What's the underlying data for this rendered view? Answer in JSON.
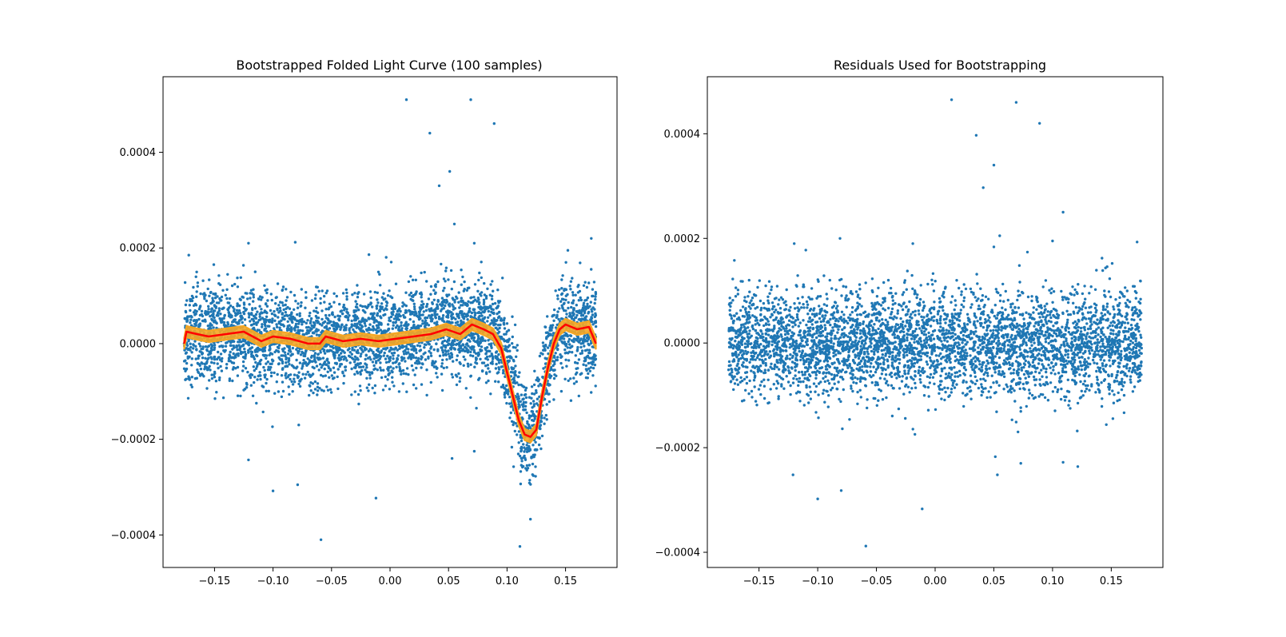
{
  "figure": {
    "background": "#ffffff",
    "point_color": "#1f77b4",
    "band_color": "#f5a623",
    "median_color": "#ff0000"
  },
  "chart_data": [
    {
      "type": "scatter",
      "title": "Bootstrapped Folded Light Curve (100 samples)",
      "xlabel": "",
      "ylabel": "",
      "xlim": [
        -0.194,
        0.194
      ],
      "ylim": [
        -0.000468,
        0.000558
      ],
      "xticks": [
        -0.15,
        -0.1,
        -0.05,
        0.0,
        0.05,
        0.1,
        0.15
      ],
      "xtick_labels": [
        "−0.15",
        "−0.10",
        "−0.05",
        "0.00",
        "0.05",
        "0.10",
        "0.15"
      ],
      "yticks": [
        -0.0004,
        -0.0002,
        0.0,
        0.0002,
        0.0004
      ],
      "ytick_labels": [
        "−0.0004",
        "−0.0002",
        "0.0000",
        "0.0002",
        "0.0004"
      ],
      "grid": false,
      "legend": "none",
      "data_range": [
        -0.176,
        0.176
      ],
      "scatter": {
        "color": "#1f77b4",
        "approx_points": 4200,
        "noise_sigma": 5e-05,
        "baseline_profile": [
          [
            -0.176,
            2e-05
          ],
          [
            -0.14,
            2e-05
          ],
          [
            -0.11,
            1.5e-05
          ],
          [
            -0.08,
            5e-06
          ],
          [
            -0.06,
            0.0
          ],
          [
            -0.04,
            1e-05
          ],
          [
            -0.01,
            1e-05
          ],
          [
            0.02,
            2e-05
          ],
          [
            0.05,
            3.5e-05
          ],
          [
            0.085,
            3e-05
          ],
          [
            0.095,
            0.0
          ],
          [
            0.105,
            -9e-05
          ],
          [
            0.113,
            -0.00018
          ],
          [
            0.119,
            -0.0002
          ],
          [
            0.126,
            -0.00015
          ],
          [
            0.133,
            -6e-05
          ],
          [
            0.142,
            2e-05
          ],
          [
            0.15,
            4e-05
          ],
          [
            0.176,
            2e-05
          ]
        ],
        "outliers": [
          [
            0.014,
            0.00051
          ],
          [
            0.069,
            0.00051
          ],
          [
            0.089,
            0.00046
          ],
          [
            0.034,
            0.00044
          ],
          [
            0.051,
            0.00036
          ],
          [
            0.042,
            0.00033
          ],
          [
            0.055,
            0.00025
          ],
          [
            -0.172,
            0.000185
          ],
          [
            -0.121,
            0.00021
          ],
          [
            -0.081,
            0.000212
          ],
          [
            -0.018,
            0.000186
          ],
          [
            0.072,
            0.00021
          ],
          [
            0.172,
            0.00022
          ],
          [
            0.152,
            0.000195
          ],
          [
            -0.121,
            -0.000243
          ],
          [
            -0.1,
            -0.000308
          ],
          [
            -0.079,
            -0.000295
          ],
          [
            -0.059,
            -0.00041
          ],
          [
            -0.012,
            -0.000323
          ],
          [
            0.072,
            -0.000225
          ],
          [
            0.053,
            -0.00024
          ],
          [
            0.12,
            -0.000367
          ],
          [
            0.111,
            -0.000424
          ],
          [
            -0.078,
            -0.00017
          ]
        ]
      },
      "bootstrap_band": {
        "color": "#f5a623",
        "half_width": 1.2e-05
      },
      "median_line": {
        "color": "#ff0000",
        "points": [
          [
            -0.176,
            0.0
          ],
          [
            -0.174,
            2.5e-05
          ],
          [
            -0.165,
            2e-05
          ],
          [
            -0.155,
            1.5e-05
          ],
          [
            -0.14,
            2e-05
          ],
          [
            -0.125,
            2.5e-05
          ],
          [
            -0.11,
            5e-06
          ],
          [
            -0.1,
            1.5e-05
          ],
          [
            -0.085,
            1e-05
          ],
          [
            -0.07,
            0.0
          ],
          [
            -0.06,
            0.0
          ],
          [
            -0.055,
            1.5e-05
          ],
          [
            -0.04,
            5e-06
          ],
          [
            -0.025,
            1e-05
          ],
          [
            -0.01,
            5e-06
          ],
          [
            0.005,
            1e-05
          ],
          [
            0.02,
            1.5e-05
          ],
          [
            0.035,
            2e-05
          ],
          [
            0.048,
            3e-05
          ],
          [
            0.06,
            2e-05
          ],
          [
            0.07,
            4e-05
          ],
          [
            0.08,
            3e-05
          ],
          [
            0.088,
            2e-05
          ],
          [
            0.095,
            -1e-05
          ],
          [
            0.1,
            -6e-05
          ],
          [
            0.105,
            -0.00011
          ],
          [
            0.11,
            -0.00016
          ],
          [
            0.115,
            -0.00019
          ],
          [
            0.12,
            -0.000195
          ],
          [
            0.125,
            -0.00018
          ],
          [
            0.13,
            -0.00011
          ],
          [
            0.135,
            -5e-05
          ],
          [
            0.14,
            0.0
          ],
          [
            0.145,
            3e-05
          ],
          [
            0.15,
            4e-05
          ],
          [
            0.16,
            3e-05
          ],
          [
            0.17,
            3.5e-05
          ],
          [
            0.176,
            0.0
          ]
        ]
      }
    },
    {
      "type": "scatter",
      "title": "Residuals Used for Bootstrapping",
      "xlabel": "",
      "ylabel": "",
      "xlim": [
        -0.194,
        0.194
      ],
      "ylim": [
        -0.000429,
        0.000509
      ],
      "xticks": [
        -0.15,
        -0.1,
        -0.05,
        0.0,
        0.05,
        0.1,
        0.15
      ],
      "xtick_labels": [
        "−0.15",
        "−0.10",
        "−0.05",
        "0.00",
        "0.05",
        "0.10",
        "0.15"
      ],
      "yticks": [
        -0.0004,
        -0.0002,
        0.0,
        0.0002,
        0.0004
      ],
      "ytick_labels": [
        "−0.0004",
        "−0.0002",
        "0.0000",
        "0.0002",
        "0.0004"
      ],
      "grid": false,
      "legend": "none",
      "data_range": [
        -0.176,
        0.176
      ],
      "scatter": {
        "color": "#1f77b4",
        "approx_points": 4200,
        "noise_sigma": 5e-05,
        "baseline_profile": [
          [
            -0.176,
            0.0
          ],
          [
            0.176,
            0.0
          ]
        ],
        "outliers": [
          [
            0.014,
            0.000465
          ],
          [
            0.069,
            0.00046
          ],
          [
            0.089,
            0.00042
          ],
          [
            0.035,
            0.000397
          ],
          [
            0.05,
            0.00034
          ],
          [
            0.041,
            0.000297
          ],
          [
            0.109,
            0.00025
          ],
          [
            -0.171,
            0.000158
          ],
          [
            -0.12,
            0.00019
          ],
          [
            -0.081,
            0.0002
          ],
          [
            -0.019,
            0.00019
          ],
          [
            0.055,
            0.000205
          ],
          [
            0.172,
            0.000193
          ],
          [
            0.1,
            0.000195
          ],
          [
            -0.121,
            -0.000252
          ],
          [
            -0.1,
            -0.000298
          ],
          [
            -0.08,
            -0.000282
          ],
          [
            -0.059,
            -0.000388
          ],
          [
            -0.011,
            -0.000317
          ],
          [
            0.053,
            -0.000252
          ],
          [
            0.073,
            -0.00023
          ],
          [
            0.109,
            -0.000228
          ],
          [
            -0.079,
            -0.000164
          ],
          [
            0.121,
            -0.000168
          ]
        ]
      }
    }
  ]
}
